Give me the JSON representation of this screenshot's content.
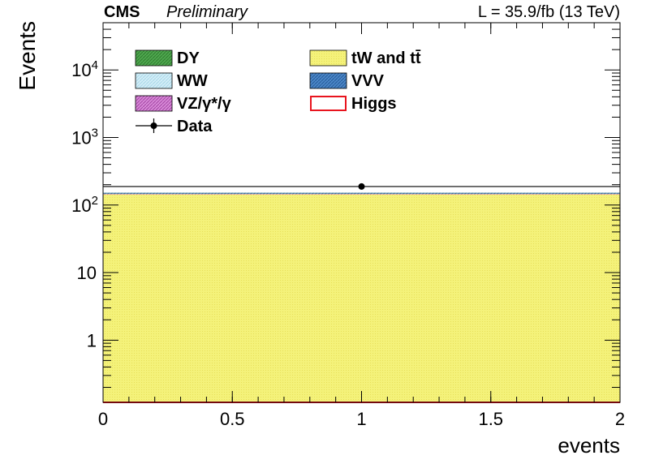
{
  "header": {
    "experiment": "CMS",
    "status": "Preliminary",
    "lumi": "L = 35.9/fb (13 TeV)"
  },
  "chart_data": {
    "type": "bar",
    "subtype": "stacked-histogram",
    "xlabel": "events",
    "ylabel": "Events",
    "xlim": [
      0,
      2
    ],
    "ylim": [
      0.12,
      50000
    ],
    "yscale": "log",
    "x_ticks": [
      {
        "value": 0,
        "label": "0"
      },
      {
        "value": 0.5,
        "label": "0.5"
      },
      {
        "value": 1,
        "label": "1"
      },
      {
        "value": 1.5,
        "label": "1.5"
      },
      {
        "value": 2,
        "label": "2"
      }
    ],
    "y_ticks": [
      {
        "value": 1,
        "label": "1"
      },
      {
        "value": 10,
        "label": "10"
      },
      {
        "value": 100,
        "label": "10",
        "exp": "2"
      },
      {
        "value": 1000,
        "label": "10",
        "exp": "3"
      },
      {
        "value": 10000,
        "label": "10",
        "exp": "4"
      }
    ],
    "bin_edges": [
      0,
      2
    ],
    "stack": [
      {
        "name": "tW and tt̄",
        "color": "#f4f27a",
        "values": [
          144
        ]
      },
      {
        "name": "VZ/γ*/γ",
        "color": "#cc66cc",
        "values": [
          6
        ]
      },
      {
        "name": "WW",
        "color": "#bde6f2",
        "values": [
          1
        ]
      },
      {
        "name": "DY",
        "color": "#3d9a3d",
        "values": [
          0.5
        ]
      },
      {
        "name": "VVV",
        "color": "#3a78c2",
        "values": [
          0.1
        ]
      },
      {
        "name": "Higgs",
        "color": "#e8141e",
        "values": [
          0.12
        ]
      }
    ],
    "data": {
      "name": "Data",
      "x": [
        1
      ],
      "y": [
        188
      ]
    },
    "legend": {
      "placement": "top-left",
      "left_column": [
        {
          "label": "DY",
          "kind": "fill",
          "color": "#3d9a3d"
        },
        {
          "label": "WW",
          "kind": "fill",
          "color": "#bde6f2"
        },
        {
          "label": "VZ/γ*/γ",
          "kind": "fill",
          "color": "#cc66cc"
        },
        {
          "label": "Data",
          "kind": "marker",
          "color": "#000000"
        }
      ],
      "right_column": [
        {
          "label": "tW and tt̄",
          "kind": "fill",
          "color": "#f4f27a"
        },
        {
          "label": "VVV",
          "kind": "fill",
          "color": "#3a78c2"
        },
        {
          "label": "Higgs",
          "kind": "line",
          "color": "#e8141e"
        }
      ]
    }
  }
}
